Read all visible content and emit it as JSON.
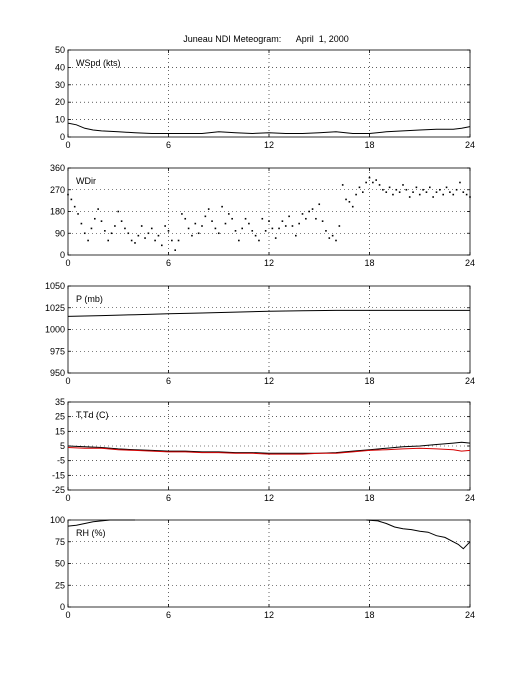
{
  "title": "Juneau NDI Meteogram:      April  1, 2000",
  "chart_data": [
    {
      "type": "line",
      "panel_label": "WSpd (kts)",
      "xlim": [
        0,
        24
      ],
      "ylim": [
        0,
        50
      ],
      "xticks": [
        0,
        6,
        12,
        18,
        24
      ],
      "yticks": [
        0,
        10,
        20,
        30,
        40,
        50
      ],
      "grid": true,
      "series": [
        {
          "color": "#000000",
          "x": [
            0,
            0.5,
            1,
            1.5,
            2,
            3,
            4,
            5,
            6,
            7,
            8,
            9,
            10,
            11,
            12,
            13,
            14,
            15,
            16,
            17,
            18,
            19,
            20,
            21,
            22,
            23,
            23.5,
            24
          ],
          "y": [
            8,
            7,
            5,
            4,
            3.5,
            3,
            2.5,
            2,
            2,
            2,
            2,
            3,
            2.5,
            2,
            2.5,
            2,
            2,
            2.5,
            3,
            2,
            2,
            3,
            3.5,
            4,
            4.5,
            4.5,
            5,
            6
          ]
        }
      ]
    },
    {
      "type": "scatter",
      "panel_label": "WDir",
      "xlim": [
        0,
        24
      ],
      "ylim": [
        0,
        360
      ],
      "xticks": [
        0,
        6,
        12,
        18,
        24
      ],
      "yticks": [
        0,
        90,
        180,
        270,
        360
      ],
      "grid": true,
      "series": [
        {
          "color": "#000000",
          "x": [
            0,
            0.2,
            0.4,
            0.6,
            0.8,
            1.0,
            1.2,
            1.4,
            1.6,
            1.8,
            2.0,
            2.2,
            2.4,
            2.6,
            2.8,
            3.0,
            3.2,
            3.4,
            3.6,
            3.8,
            4.0,
            4.2,
            4.4,
            4.6,
            4.8,
            5.0,
            5.2,
            5.4,
            5.6,
            5.8,
            6.0,
            6.2,
            6.4,
            6.6,
            6.8,
            7.0,
            7.2,
            7.4,
            7.6,
            7.8,
            8.0,
            8.2,
            8.4,
            8.6,
            8.8,
            9.0,
            9.2,
            9.4,
            9.6,
            9.8,
            10.0,
            10.2,
            10.4,
            10.6,
            10.8,
            11.0,
            11.2,
            11.4,
            11.6,
            11.8,
            12.0,
            12.2,
            12.4,
            12.6,
            12.8,
            13.0,
            13.2,
            13.4,
            13.6,
            13.8,
            14.0,
            14.2,
            14.4,
            14.6,
            14.8,
            15.0,
            15.2,
            15.4,
            15.6,
            15.8,
            16.0,
            16.2,
            16.4,
            16.6,
            16.8,
            17.0,
            17.2,
            17.4,
            17.6,
            17.8,
            18.0,
            18.2,
            18.4,
            18.6,
            18.8,
            19.0,
            19.2,
            19.4,
            19.6,
            19.8,
            20.0,
            20.2,
            20.4,
            20.6,
            20.8,
            21.0,
            21.2,
            21.4,
            21.6,
            21.8,
            22.0,
            22.2,
            22.4,
            22.6,
            22.8,
            23.0,
            23.2,
            23.4,
            23.6,
            23.8,
            24.0
          ],
          "y": [
            250,
            230,
            200,
            170,
            130,
            90,
            60,
            110,
            150,
            190,
            140,
            100,
            60,
            90,
            120,
            180,
            140,
            110,
            90,
            60,
            50,
            80,
            120,
            70,
            90,
            110,
            60,
            80,
            40,
            120,
            100,
            60,
            20,
            60,
            170,
            150,
            110,
            80,
            130,
            90,
            120,
            160,
            190,
            140,
            110,
            90,
            200,
            130,
            170,
            150,
            100,
            60,
            110,
            150,
            130,
            100,
            80,
            60,
            150,
            100,
            140,
            110,
            70,
            110,
            140,
            120,
            160,
            120,
            80,
            130,
            170,
            150,
            180,
            190,
            150,
            210,
            140,
            100,
            70,
            80,
            60,
            120,
            290,
            230,
            220,
            200,
            250,
            280,
            260,
            300,
            320,
            300,
            310,
            290,
            270,
            260,
            280,
            250,
            270,
            260,
            290,
            270,
            240,
            260,
            280,
            250,
            270,
            260,
            280,
            240,
            260,
            270,
            250,
            280,
            260,
            250,
            270,
            300,
            260,
            250,
            240
          ]
        }
      ]
    },
    {
      "type": "line",
      "panel_label": "P (mb)",
      "xlim": [
        0,
        24
      ],
      "ylim": [
        950,
        1050
      ],
      "xticks": [
        0,
        6,
        12,
        18,
        24
      ],
      "yticks": [
        950,
        975,
        1000,
        1025,
        1050
      ],
      "grid": true,
      "series": [
        {
          "color": "#000000",
          "x": [
            0,
            2,
            4,
            6,
            8,
            10,
            12,
            14,
            16,
            18,
            20,
            22,
            24
          ],
          "y": [
            1015,
            1016,
            1017,
            1018,
            1019,
            1020,
            1021,
            1021.5,
            1022,
            1022,
            1022,
            1022,
            1022
          ]
        }
      ]
    },
    {
      "type": "line",
      "panel_label": "T,Td (C)",
      "xlim": [
        0,
        24
      ],
      "ylim": [
        -25,
        35
      ],
      "xticks": [
        0,
        6,
        12,
        18,
        24
      ],
      "yticks": [
        -25,
        -15,
        -5,
        5,
        15,
        25,
        35
      ],
      "grid": true,
      "series": [
        {
          "color": "#000000",
          "x": [
            0,
            1,
            2,
            3,
            4,
            5,
            6,
            7,
            8,
            9,
            10,
            11,
            12,
            13,
            14,
            15,
            16,
            17,
            18,
            19,
            20,
            21,
            22,
            23,
            23.5,
            24
          ],
          "y": [
            5,
            4.5,
            4,
            3,
            2.5,
            2,
            1.5,
            1.5,
            1,
            1,
            0.5,
            0.5,
            0,
            0,
            0,
            0,
            0.5,
            1.5,
            2.5,
            3.5,
            4.5,
            5,
            6,
            7,
            7.5,
            7
          ]
        },
        {
          "color": "#d40000",
          "x": [
            0,
            1,
            2,
            3,
            4,
            5,
            6,
            7,
            8,
            9,
            10,
            11,
            12,
            13,
            14,
            15,
            16,
            17,
            18,
            19,
            20,
            21,
            22,
            23,
            23.5,
            24
          ],
          "y": [
            4,
            3.5,
            3.5,
            2.5,
            2,
            1.5,
            1,
            1,
            0.5,
            0.5,
            0,
            0,
            -0.5,
            -0.5,
            -0.5,
            0,
            0,
            1,
            2,
            2.5,
            3,
            3.5,
            3,
            2.5,
            1.5,
            2
          ]
        }
      ]
    },
    {
      "type": "line",
      "panel_label": "RH (%)",
      "xlim": [
        0,
        24
      ],
      "ylim": [
        0,
        100
      ],
      "xticks": [
        0,
        6,
        12,
        18,
        24
      ],
      "yticks": [
        0,
        25,
        50,
        75,
        100
      ],
      "grid": true,
      "series": [
        {
          "color": "#000000",
          "x": [
            0,
            0.5,
            1,
            1.5,
            2,
            2.5,
            3,
            3.5,
            4,
            null,
            17.8,
            18.5,
            19,
            19.5,
            20,
            20.5,
            21,
            21.5,
            22,
            22.5,
            23,
            23.3,
            23.6,
            24
          ],
          "y": [
            93,
            94,
            96,
            98,
            99,
            100,
            100,
            100,
            100,
            null,
            100,
            99,
            96,
            92,
            90,
            89,
            87,
            86,
            82,
            80,
            75,
            72,
            67,
            75
          ]
        }
      ]
    }
  ]
}
